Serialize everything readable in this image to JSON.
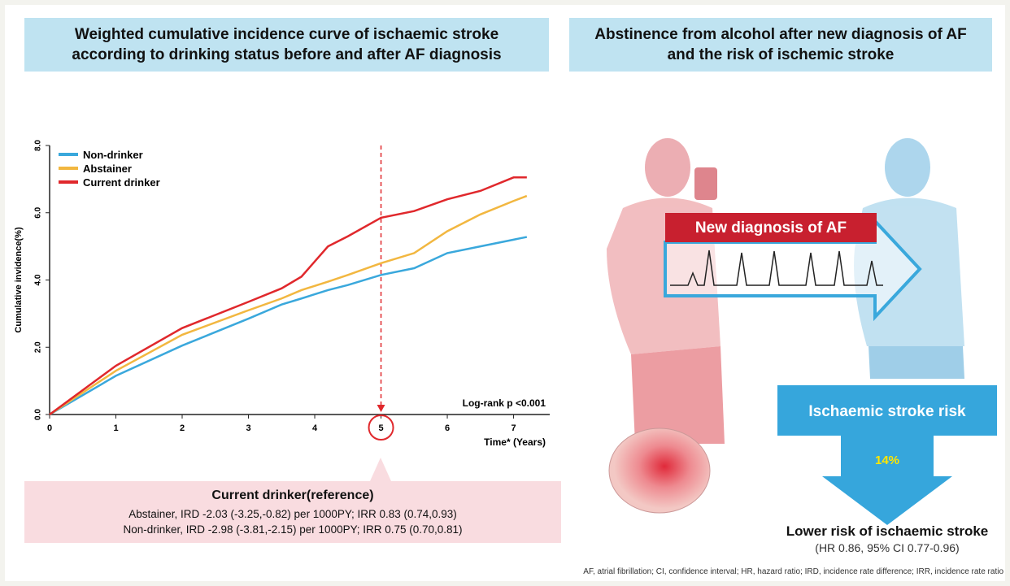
{
  "left_title": "Weighted cumulative incidence curve of ischaemic stroke according to drinking status before and after AF diagnosis",
  "right_title": "Abstinence from alcohol after new diagnosis of AF and the risk of ischemic stroke",
  "chart_data": {
    "type": "line",
    "y_label": "Cumulative invidence(%)",
    "x_label": "Time* (Years)",
    "annotation": "Log-rank p <0.001",
    "marker_x": 5,
    "x": [
      0,
      1,
      2,
      3,
      3.5,
      3.8,
      4.2,
      4.5,
      5,
      5.5,
      6,
      6.5,
      7,
      7.2
    ],
    "series": [
      {
        "name": "Non-drinker",
        "color": "#3aa8dc",
        "values": [
          0,
          1.15,
          2.05,
          2.85,
          3.27,
          3.45,
          3.7,
          3.85,
          4.15,
          4.35,
          4.8,
          5.0,
          5.2,
          5.28
        ]
      },
      {
        "name": "Abstainer",
        "color": "#f2b740",
        "values": [
          0,
          1.3,
          2.37,
          3.1,
          3.45,
          3.7,
          3.95,
          4.15,
          4.5,
          4.8,
          5.45,
          5.95,
          6.35,
          6.5
        ]
      },
      {
        "name": "Current drinker",
        "color": "#e0282c",
        "values": [
          0,
          1.45,
          2.57,
          3.35,
          3.75,
          4.1,
          5.0,
          5.3,
          5.85,
          6.05,
          6.4,
          6.65,
          7.05,
          7.05
        ]
      }
    ],
    "xlim": [
      0,
      7.3
    ],
    "xticks": [
      0,
      1,
      2,
      3,
      4,
      5,
      6,
      7
    ],
    "ylim": [
      0,
      8
    ],
    "yticks": [
      {
        "value": 0,
        "label": "0.0"
      },
      {
        "value": 2,
        "label": "2.0"
      },
      {
        "value": 4,
        "label": "4.0"
      },
      {
        "value": 6,
        "label": "6.0"
      },
      {
        "value": 8,
        "label": "8.0"
      }
    ]
  },
  "reference_box": {
    "title": "Current drinker(reference)",
    "lines": [
      "Abstainer, IRD -2.03 (-3.25,-0.82) per 1000PY; IRR 0.83 (0.74,0.93)",
      "Non-drinker, IRD -2.98 (-3.81,-2.15) per 1000PY; IRR 0.75 (0.70,0.81)"
    ]
  },
  "diagnosis_label": "New diagnosis of AF",
  "risk_label": "Ischaemic stroke risk",
  "risk_reduction": "14%",
  "result_title": "Lower risk of ischaemic stroke",
  "result_detail": "(HR 0.86, 95% CI 0.77-0.96)",
  "footnote": "AF, atrial fibrillation; CI, confidence interval; HR, hazard ratio; IRD, incidence rate difference; IRR, incidence rate ratio"
}
